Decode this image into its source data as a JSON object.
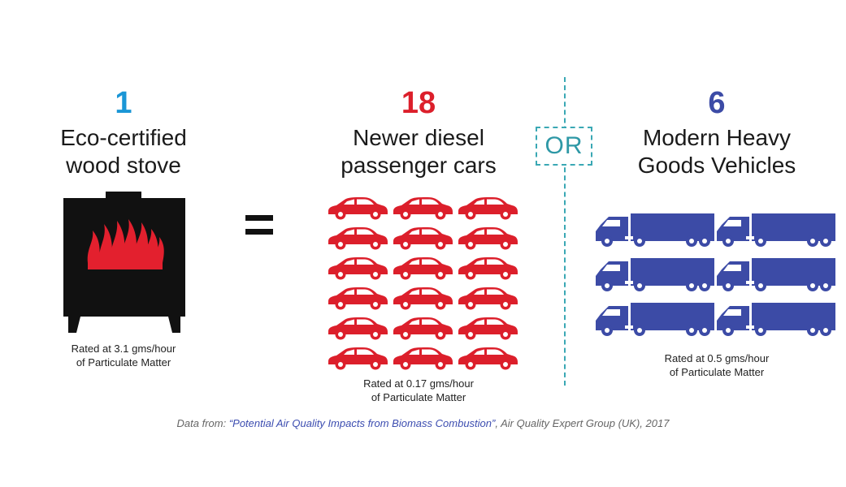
{
  "columns": [
    {
      "number": "1",
      "title_line1": "Eco-certified",
      "title_line2": "wood stove",
      "caption_line1": "Rated at 3.1 gms/hour",
      "caption_line2": "of Particulate Matter",
      "color": "#1a96d6",
      "icon": "wood-stove-icon"
    },
    {
      "number": "18",
      "title_line1": "Newer diesel",
      "title_line2": "passenger cars",
      "caption_line1": "Rated at 0.17 gms/hour",
      "caption_line2": "of Particulate Matter",
      "color": "#dc1f2b",
      "icon": "car-icon",
      "icon_count": 18
    },
    {
      "number": "6",
      "title_line1": "Modern Heavy",
      "title_line2": "Goods Vehicles",
      "caption_line1": "Rated at 0.5 gms/hour",
      "caption_line2": "of Particulate Matter",
      "color": "#3c4ba6",
      "icon": "truck-icon",
      "icon_count": 6
    }
  ],
  "equals_sign": "=",
  "or_label": "OR",
  "source": {
    "prefix": "Data from: ",
    "title": "“Potential Air Quality Impacts from Biomass Combustion”",
    "suffix": ", Air Quality Expert Group (UK), 2017"
  },
  "colors": {
    "stove": "#111111",
    "flame": "#e3202e",
    "divider": "#3aa8b4"
  }
}
